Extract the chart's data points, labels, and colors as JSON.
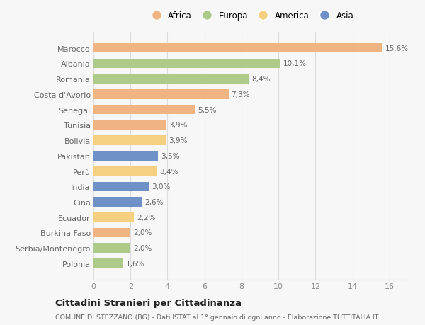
{
  "countries": [
    "Marocco",
    "Albania",
    "Romania",
    "Costa d'Avorio",
    "Senegal",
    "Tunisia",
    "Bolivia",
    "Pakistan",
    "Perù",
    "India",
    "Cina",
    "Ecuador",
    "Burkina Faso",
    "Serbia/Montenegro",
    "Polonia"
  ],
  "values": [
    15.6,
    10.1,
    8.4,
    7.3,
    5.5,
    3.9,
    3.9,
    3.5,
    3.4,
    3.0,
    2.6,
    2.2,
    2.0,
    2.0,
    1.6
  ],
  "continents": [
    "Africa",
    "Europa",
    "Europa",
    "Africa",
    "Africa",
    "Africa",
    "America",
    "Asia",
    "America",
    "Asia",
    "Asia",
    "America",
    "Africa",
    "Europa",
    "Europa"
  ],
  "continent_colors": {
    "Africa": "#F0B482",
    "Europa": "#AECA8A",
    "America": "#F5D080",
    "Asia": "#7090C8"
  },
  "legend_order": [
    "Africa",
    "Europa",
    "America",
    "Asia"
  ],
  "title": "Cittadini Stranieri per Cittadinanza",
  "subtitle": "COMUNE DI STEZZANO (BG) - Dati ISTAT al 1° gennaio di ogni anno - Elaborazione TUTTITALIA.IT",
  "xlim": [
    0,
    17
  ],
  "xticks": [
    0,
    2,
    4,
    6,
    8,
    10,
    12,
    14,
    16
  ],
  "background_color": "#F7F7F7",
  "bar_height": 0.62
}
